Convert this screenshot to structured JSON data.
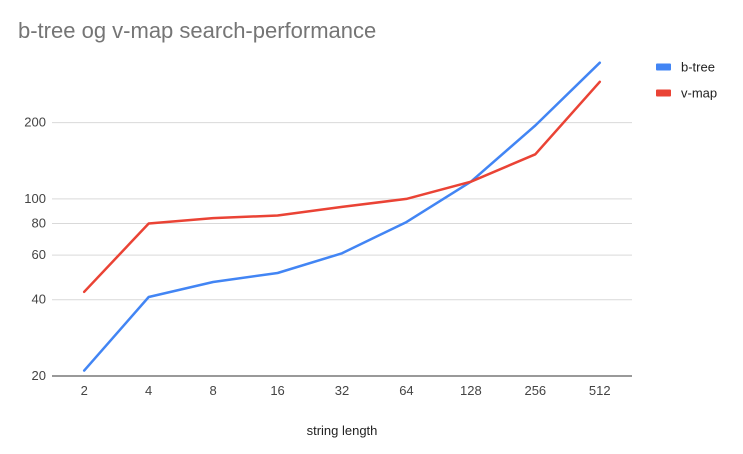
{
  "chart_data": {
    "type": "line",
    "title": "b-tree og v-map search-performance",
    "xlabel": "string length",
    "ylabel": "",
    "categories": [
      "2",
      "4",
      "8",
      "16",
      "32",
      "64",
      "128",
      "256",
      "512"
    ],
    "y_scale": "log",
    "ylim": [
      20,
      360
    ],
    "yticks": [
      20,
      40,
      60,
      80,
      100,
      200
    ],
    "grid": true,
    "legend_position": "right",
    "series": [
      {
        "name": "b-tree",
        "color": "#4285f4",
        "values": [
          21,
          41,
          47,
          51,
          61,
          81,
          117,
          195,
          345
        ]
      },
      {
        "name": "v-map",
        "color": "#ea4335",
        "values": [
          43,
          80,
          84,
          86,
          93,
          100,
          117,
          150,
          290
        ]
      }
    ]
  }
}
